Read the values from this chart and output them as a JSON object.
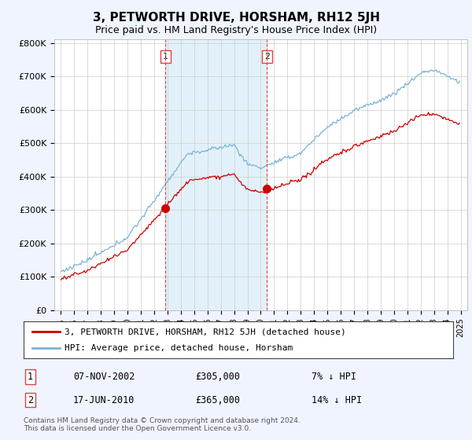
{
  "title": "3, PETWORTH DRIVE, HORSHAM, RH12 5JH",
  "subtitle": "Price paid vs. HM Land Registry's House Price Index (HPI)",
  "ylabel_ticks": [
    "£0",
    "£100K",
    "£200K",
    "£300K",
    "£400K",
    "£500K",
    "£600K",
    "£700K",
    "£800K"
  ],
  "ylim": [
    0,
    800000
  ],
  "hpi_color": "#7ab4d4",
  "hpi_fill_color": "#d0e8f5",
  "price_color": "#cc0000",
  "dashed_color": "#dd4444",
  "background_color": "#f0f4ff",
  "plot_bg": "#ffffff",
  "grid_color": "#cccccc",
  "transaction1": {
    "date": "07-NOV-2002",
    "price": 305000,
    "label": "1",
    "year": 2002.85
  },
  "transaction2": {
    "date": "17-JUN-2010",
    "price": 365000,
    "label": "2",
    "year": 2010.46
  },
  "legend_line1": "3, PETWORTH DRIVE, HORSHAM, RH12 5JH (detached house)",
  "legend_line2": "HPI: Average price, detached house, Horsham",
  "legend_hpi_color": "#7ab4d4",
  "table_row1": [
    "1",
    "07-NOV-2002",
    "£305,000",
    "7% ↓ HPI"
  ],
  "table_row2": [
    "2",
    "17-JUN-2010",
    "£365,000",
    "14% ↓ HPI"
  ],
  "footnote": "Contains HM Land Registry data © Crown copyright and database right 2024.\nThis data is licensed under the Open Government Licence v3.0.",
  "title_fontsize": 11,
  "subtitle_fontsize": 9
}
